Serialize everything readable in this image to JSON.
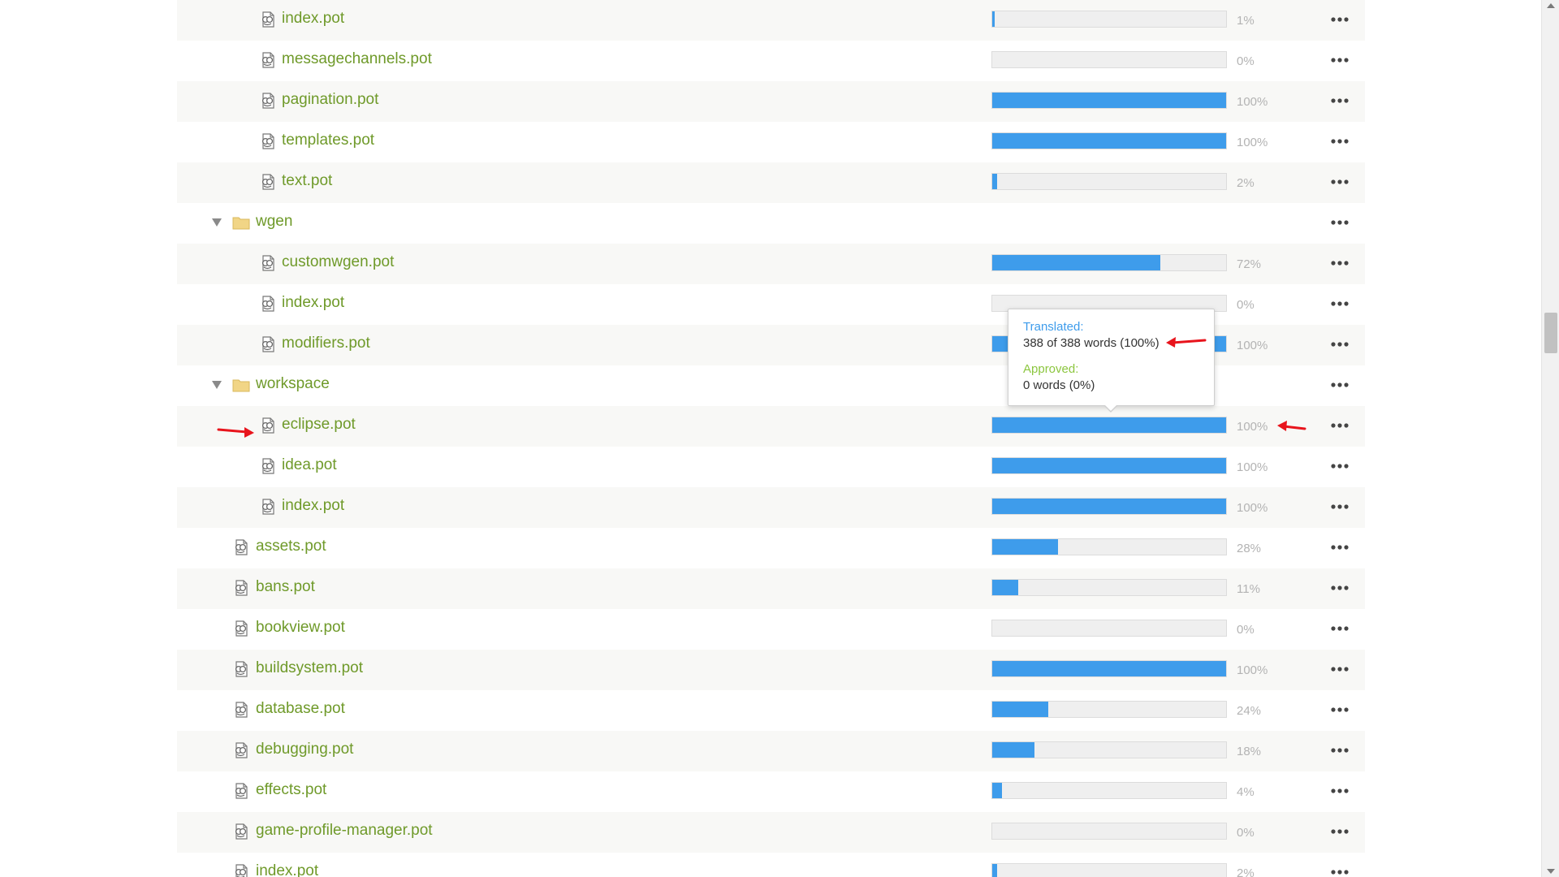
{
  "tree": {
    "rows": [
      {
        "type": "file",
        "name": "index.pot",
        "depth": 2,
        "translated_pct": 1,
        "pct_label": "1%"
      },
      {
        "type": "file",
        "name": "messagechannels.pot",
        "depth": 2,
        "translated_pct": 0,
        "pct_label": "0%"
      },
      {
        "type": "file",
        "name": "pagination.pot",
        "depth": 2,
        "translated_pct": 100,
        "pct_label": "100%"
      },
      {
        "type": "file",
        "name": "templates.pot",
        "depth": 2,
        "translated_pct": 100,
        "pct_label": "100%"
      },
      {
        "type": "file",
        "name": "text.pot",
        "depth": 2,
        "translated_pct": 2,
        "pct_label": "2%"
      },
      {
        "type": "folder",
        "name": "wgen",
        "depth": 1,
        "expanded": true
      },
      {
        "type": "file",
        "name": "customwgen.pot",
        "depth": 2,
        "translated_pct": 72,
        "pct_label": "72%"
      },
      {
        "type": "file",
        "name": "index.pot",
        "depth": 2,
        "translated_pct": 0,
        "pct_label": "0%"
      },
      {
        "type": "file",
        "name": "modifiers.pot",
        "depth": 2,
        "translated_pct": 100,
        "pct_label": "100%"
      },
      {
        "type": "folder",
        "name": "workspace",
        "depth": 1,
        "expanded": true
      },
      {
        "type": "file",
        "name": "eclipse.pot",
        "depth": 2,
        "translated_pct": 100,
        "pct_label": "100%"
      },
      {
        "type": "file",
        "name": "idea.pot",
        "depth": 2,
        "translated_pct": 100,
        "pct_label": "100%"
      },
      {
        "type": "file",
        "name": "index.pot",
        "depth": 2,
        "translated_pct": 100,
        "pct_label": "100%"
      },
      {
        "type": "file",
        "name": "assets.pot",
        "depth": 1,
        "translated_pct": 28,
        "pct_label": "28%"
      },
      {
        "type": "file",
        "name": "bans.pot",
        "depth": 1,
        "translated_pct": 11,
        "pct_label": "11%"
      },
      {
        "type": "file",
        "name": "bookview.pot",
        "depth": 1,
        "translated_pct": 0,
        "pct_label": "0%"
      },
      {
        "type": "file",
        "name": "buildsystem.pot",
        "depth": 1,
        "translated_pct": 100,
        "pct_label": "100%"
      },
      {
        "type": "file",
        "name": "database.pot",
        "depth": 1,
        "translated_pct": 24,
        "pct_label": "24%"
      },
      {
        "type": "file",
        "name": "debugging.pot",
        "depth": 1,
        "translated_pct": 18,
        "pct_label": "18%"
      },
      {
        "type": "file",
        "name": "effects.pot",
        "depth": 1,
        "translated_pct": 4,
        "pct_label": "4%"
      },
      {
        "type": "file",
        "name": "game-profile-manager.pot",
        "depth": 1,
        "translated_pct": 0,
        "pct_label": "0%"
      },
      {
        "type": "file",
        "name": "index.pot",
        "depth": 1,
        "translated_pct": 2,
        "pct_label": "2%"
      }
    ]
  },
  "tooltip": {
    "translated_label": "Translated:",
    "translated_value": "388 of 388 words (100%)",
    "approved_label": "Approved:",
    "approved_value": "0 words (0%)"
  },
  "icons": {
    "file": "po-file-icon",
    "folder": "folder-icon",
    "expand": "caret-down-icon",
    "more": "more-dots-icon"
  },
  "colors": {
    "file_name": "#6f9a2a",
    "bar_fill": "#3e9ceb",
    "bar_track": "#efefef",
    "translated_label": "#3e9ceb",
    "approved_label": "#8cc63f",
    "annotation": "#e8141c",
    "stripe": "#f8f8f6",
    "folder": "#f1d586"
  }
}
